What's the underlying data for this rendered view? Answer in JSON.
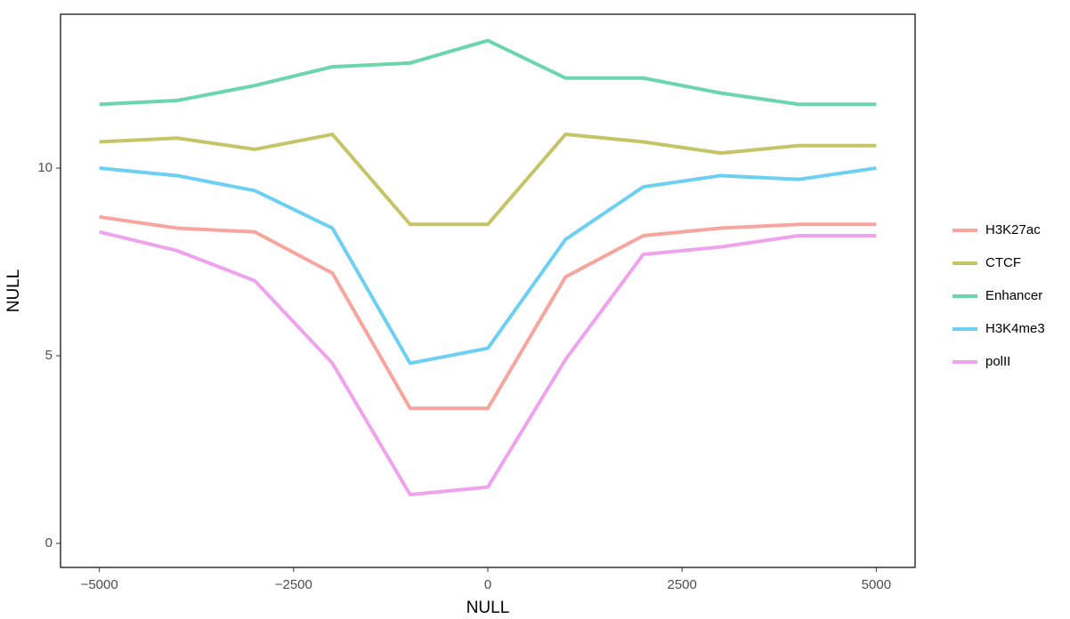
{
  "chart_data": {
    "type": "line",
    "x_label": "NULL",
    "y_label": "NULL",
    "x": [
      -5000,
      -4000,
      -3000,
      -2000,
      -1000,
      0,
      1000,
      2000,
      3000,
      4000,
      5000
    ],
    "series": [
      {
        "name": "H3K27ac",
        "color": "#f7a59d",
        "values": [
          8.7,
          8.4,
          8.3,
          7.2,
          3.6,
          3.6,
          7.1,
          8.2,
          8.4,
          8.5,
          8.5
        ]
      },
      {
        "name": "CTCF",
        "color": "#c5c467",
        "values": [
          10.7,
          10.8,
          10.5,
          10.9,
          8.5,
          8.5,
          10.9,
          10.7,
          10.4,
          10.6,
          10.6
        ]
      },
      {
        "name": "Enhancer",
        "color": "#6bd6ae",
        "values": [
          11.7,
          11.8,
          12.2,
          12.7,
          12.8,
          13.4,
          12.4,
          12.4,
          12.0,
          11.7,
          11.7
        ]
      },
      {
        "name": "H3K4me3",
        "color": "#6cd0f2",
        "values": [
          10.0,
          9.8,
          9.4,
          8.4,
          4.8,
          5.2,
          8.1,
          9.5,
          9.8,
          9.7,
          10.0
        ]
      },
      {
        "name": "polII",
        "color": "#efa3ef",
        "values": [
          8.3,
          7.8,
          7.0,
          4.8,
          1.3,
          1.5,
          4.9,
          7.7,
          7.9,
          8.2,
          8.2
        ]
      }
    ],
    "xlim": [
      -5500,
      5500
    ],
    "ylim": [
      -0.64,
      14.1
    ],
    "xticks": [
      {
        "value": -5000,
        "label": "−5000"
      },
      {
        "value": -2500,
        "label": "−2500"
      },
      0,
      2500,
      5000
    ],
    "yticks": [
      0,
      5,
      10
    ],
    "grid": false,
    "legend_position": "right"
  }
}
